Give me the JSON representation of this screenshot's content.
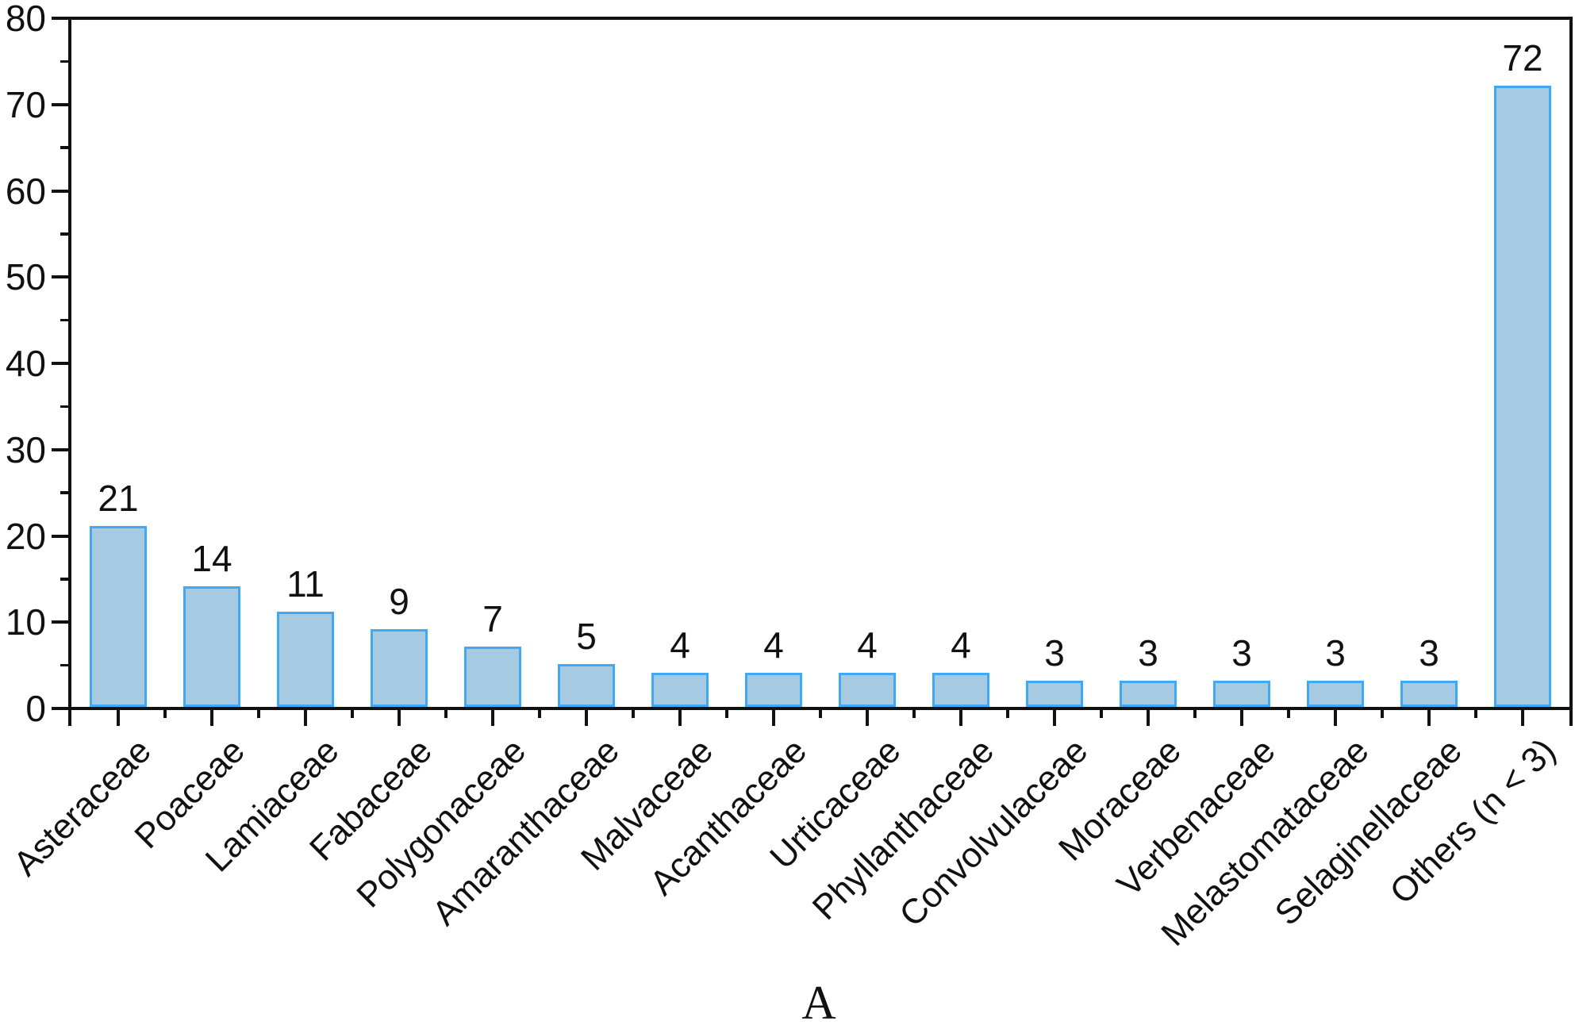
{
  "figure": {
    "background_color": "#ffffff",
    "axis_color": "#111111",
    "panel_label": "A"
  },
  "chart_data": {
    "type": "bar",
    "title": "",
    "xlabel": "",
    "ylabel": "",
    "categories": [
      "Asteraceae",
      "Poaceae",
      "Lamiaceae",
      "Fabaceae",
      "Polygonaceae",
      "Amaranthaceae",
      "Malvaceae",
      "Acanthaceae",
      "Urticaceae",
      "Phyllanthaceae",
      "Convolvulaceae",
      "Moraceae",
      "Verbenaceae",
      "Melastomataceae",
      "Selaginellaceae",
      "Others (n < 3)"
    ],
    "values": [
      21,
      14,
      11,
      9,
      7,
      5,
      4,
      4,
      4,
      4,
      3,
      3,
      3,
      3,
      3,
      72
    ],
    "ylim": [
      0,
      80
    ],
    "yticks_major": [
      0,
      10,
      20,
      30,
      40,
      50,
      60,
      70,
      80
    ],
    "yticks_minor": [
      5,
      15,
      25,
      35,
      45,
      55,
      65,
      75
    ],
    "grid": false,
    "legend": false,
    "bar_fill_color": "#a6cae2",
    "bar_border_color": "#3fa9f5",
    "value_labels_shown": true,
    "x_label_rotation_deg": -45,
    "panel_label": "A"
  }
}
